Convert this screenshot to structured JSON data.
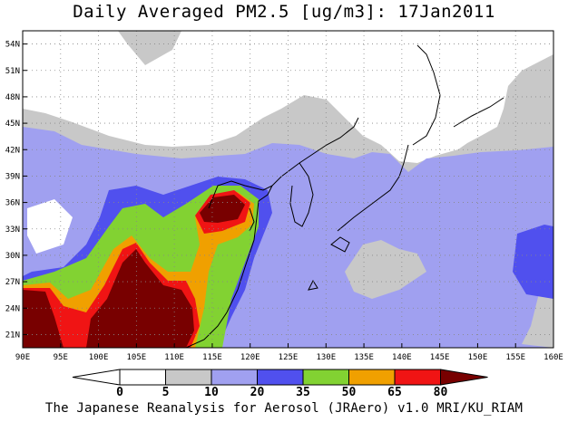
{
  "title": "Daily Averaged PM2.5 [ug/m3]: 17Jan2011",
  "credit": "The Japanese Reanalysis for Aerosol (JRAero) v1.0 MRI/KU_RIAM",
  "map": {
    "lon_range": [
      90,
      160
    ],
    "lat_range": [
      19.5,
      55.5
    ],
    "lon_ticks": [
      "90E",
      "95E",
      "100E",
      "105E",
      "110E",
      "115E",
      "120E",
      "125E",
      "130E",
      "135E",
      "140E",
      "145E",
      "150E",
      "155E",
      "160E"
    ],
    "lat_ticks": [
      "54N",
      "51N",
      "48N",
      "45N",
      "42N",
      "39N",
      "36N",
      "33N",
      "30N",
      "27N",
      "24N",
      "21N"
    ]
  },
  "colorbar": {
    "labels": [
      "0",
      "5",
      "10",
      "20",
      "35",
      "50",
      "65",
      "80"
    ],
    "colors": [
      "#ffffff",
      "#c8c8c8",
      "#a0a0f0",
      "#5050ee",
      "#82d232",
      "#f0a000",
      "#f01414",
      "#780000"
    ]
  }
}
